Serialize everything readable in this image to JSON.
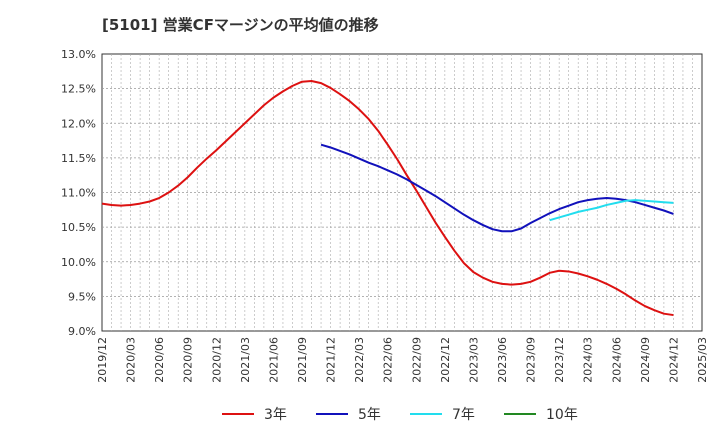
{
  "chart_data": {
    "type": "line",
    "title": "[5101]  営業CFマージンの平均値の推移",
    "xlabel": "",
    "ylabel": "",
    "ylim": [
      9.0,
      13.0
    ],
    "yticks": [
      9.0,
      9.5,
      10.0,
      10.5,
      11.0,
      11.5,
      12.0,
      12.5,
      13.0
    ],
    "ytick_labels": [
      "9.0%",
      "9.5%",
      "10.0%",
      "10.5%",
      "11.0%",
      "11.5%",
      "12.0%",
      "12.5%",
      "13.0%"
    ],
    "x_ticks": [
      "2019/12",
      "2020/03",
      "2020/06",
      "2020/09",
      "2020/12",
      "2021/03",
      "2021/06",
      "2021/09",
      "2021/12",
      "2022/03",
      "2022/06",
      "2022/09",
      "2022/12",
      "2023/03",
      "2023/06",
      "2023/09",
      "2023/12",
      "2024/03",
      "2024/06",
      "2024/09",
      "2024/12",
      "2025/03"
    ],
    "grid": true,
    "legend_position": "bottom",
    "series": [
      {
        "name": "3年",
        "color": "#dd1111",
        "x": [
          "2019/12",
          "2020/01",
          "2020/02",
          "2020/03",
          "2020/04",
          "2020/05",
          "2020/06",
          "2020/07",
          "2020/08",
          "2020/09",
          "2020/10",
          "2020/11",
          "2020/12",
          "2021/01",
          "2021/02",
          "2021/03",
          "2021/04",
          "2021/05",
          "2021/06",
          "2021/07",
          "2021/08",
          "2021/09",
          "2021/10",
          "2021/11",
          "2021/12",
          "2022/01",
          "2022/02",
          "2022/03",
          "2022/04",
          "2022/05",
          "2022/06",
          "2022/07",
          "2022/08",
          "2022/09",
          "2022/10",
          "2022/11",
          "2022/12",
          "2023/01",
          "2023/02",
          "2023/03",
          "2023/04",
          "2023/05",
          "2023/06",
          "2023/07",
          "2023/08",
          "2023/09",
          "2023/10",
          "2023/11",
          "2023/12",
          "2024/01",
          "2024/02",
          "2024/03",
          "2024/04",
          "2024/05",
          "2024/06",
          "2024/07",
          "2024/08",
          "2024/09",
          "2024/10",
          "2024/11",
          "2024/12"
        ],
        "values": [
          10.84,
          10.82,
          10.81,
          10.82,
          10.84,
          10.87,
          10.92,
          11.0,
          11.1,
          11.22,
          11.36,
          11.49,
          11.61,
          11.74,
          11.87,
          12.0,
          12.13,
          12.26,
          12.37,
          12.46,
          12.54,
          12.6,
          12.61,
          12.58,
          12.51,
          12.42,
          12.32,
          12.2,
          12.06,
          11.89,
          11.69,
          11.48,
          11.25,
          11.03,
          10.8,
          10.57,
          10.36,
          10.16,
          9.98,
          9.85,
          9.77,
          9.71,
          9.68,
          9.67,
          9.68,
          9.71,
          9.77,
          9.84,
          9.87,
          9.86,
          9.83,
          9.79,
          9.74,
          9.68,
          9.61,
          9.53,
          9.44,
          9.36,
          9.3,
          9.25,
          9.23
        ]
      },
      {
        "name": "5年",
        "color": "#1111bb",
        "x": [
          "2021/11",
          "2021/12",
          "2022/01",
          "2022/02",
          "2022/03",
          "2022/04",
          "2022/05",
          "2022/06",
          "2022/07",
          "2022/08",
          "2022/09",
          "2022/10",
          "2022/11",
          "2022/12",
          "2023/01",
          "2023/02",
          "2023/03",
          "2023/04",
          "2023/05",
          "2023/06",
          "2023/07",
          "2023/08",
          "2023/09",
          "2023/10",
          "2023/11",
          "2023/12",
          "2024/01",
          "2024/02",
          "2024/03",
          "2024/04",
          "2024/05",
          "2024/06",
          "2024/07",
          "2024/08",
          "2024/09",
          "2024/10",
          "2024/11",
          "2024/12"
        ],
        "values": [
          11.69,
          11.65,
          11.6,
          11.55,
          11.49,
          11.43,
          11.38,
          11.32,
          11.26,
          11.19,
          11.11,
          11.03,
          10.95,
          10.86,
          10.77,
          10.68,
          10.6,
          10.53,
          10.47,
          10.44,
          10.44,
          10.48,
          10.56,
          10.63,
          10.7,
          10.76,
          10.81,
          10.86,
          10.89,
          10.91,
          10.92,
          10.91,
          10.89,
          10.86,
          10.82,
          10.78,
          10.74,
          10.69
        ]
      },
      {
        "name": "7年",
        "color": "#22ddee",
        "x": [
          "2023/11",
          "2023/12",
          "2024/01",
          "2024/02",
          "2024/03",
          "2024/04",
          "2024/05",
          "2024/06",
          "2024/07",
          "2024/08",
          "2024/09",
          "2024/10",
          "2024/11",
          "2024/12"
        ],
        "values": [
          10.6,
          10.64,
          10.68,
          10.72,
          10.75,
          10.78,
          10.82,
          10.85,
          10.88,
          10.89,
          10.88,
          10.87,
          10.86,
          10.85
        ]
      },
      {
        "name": "10年",
        "color": "#228822",
        "x": [],
        "values": []
      }
    ]
  }
}
